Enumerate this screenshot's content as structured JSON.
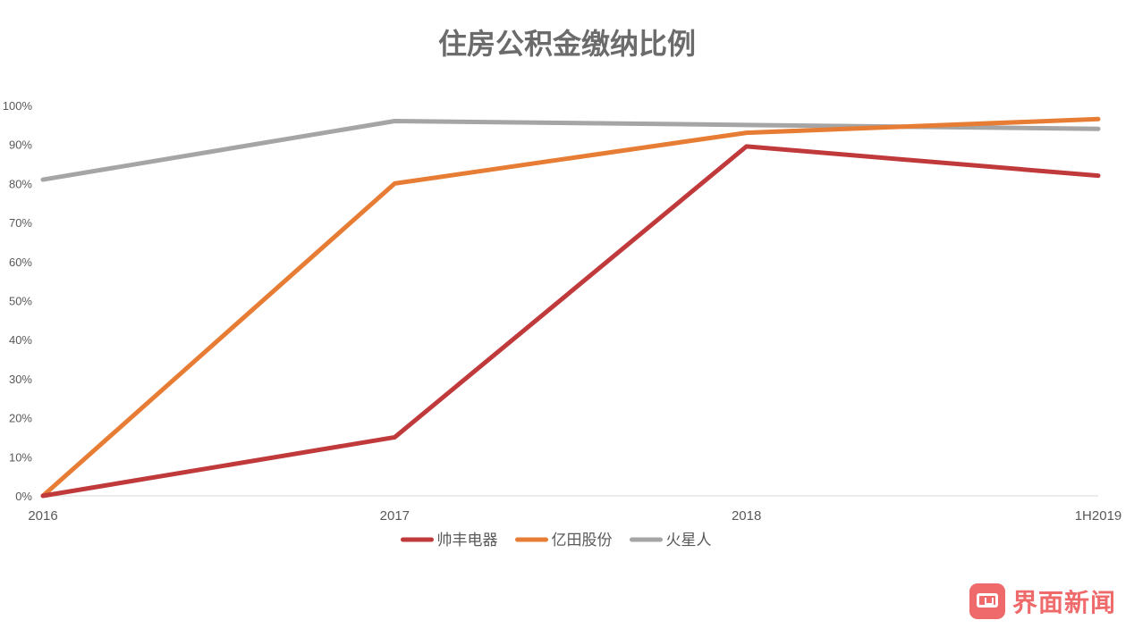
{
  "chart_data": {
    "type": "line",
    "title": "住房公积金缴纳比例",
    "categories": [
      "2016",
      "2017",
      "2018",
      "1H2019"
    ],
    "y_ticks": [
      "0%",
      "10%",
      "20%",
      "30%",
      "40%",
      "50%",
      "60%",
      "70%",
      "80%",
      "90%",
      "100%"
    ],
    "ylim": [
      0,
      100
    ],
    "grid": false,
    "legend_position": "bottom",
    "series": [
      {
        "name": "帅丰电器",
        "color": "#c0393b",
        "values": [
          0,
          15,
          89.5,
          82
        ]
      },
      {
        "name": "亿田股份",
        "color": "#e77c34",
        "values": [
          0,
          80,
          93,
          96.5
        ]
      },
      {
        "name": "火星人",
        "color": "#a5a5a5",
        "values": [
          81,
          96,
          95,
          94
        ]
      }
    ]
  },
  "logo": {
    "text": "界面新闻",
    "icon": "jiemian-logo-icon",
    "color": "#ef6a6a"
  }
}
